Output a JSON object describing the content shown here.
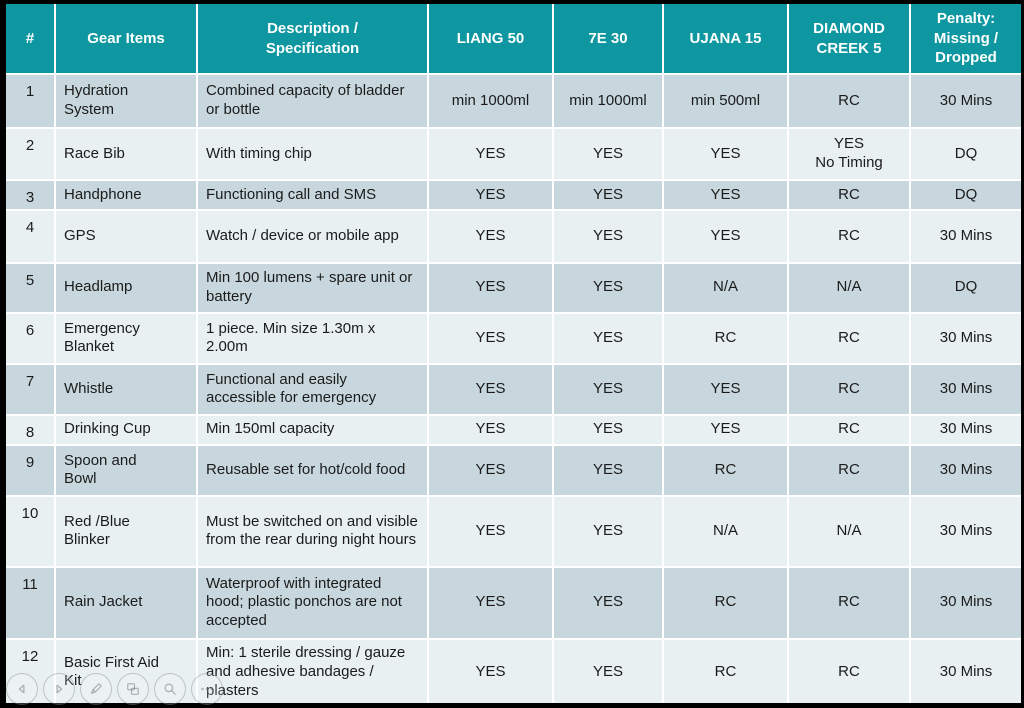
{
  "table": {
    "headers": [
      {
        "key": "num",
        "label": "#"
      },
      {
        "key": "gear_items",
        "label": "Gear Items"
      },
      {
        "key": "description",
        "label": "Description /\nSpecification"
      },
      {
        "key": "liang_50",
        "label": "LIANG 50"
      },
      {
        "key": "7e_30",
        "label": "7E 30"
      },
      {
        "key": "ujana_15",
        "label": "UJANA 15"
      },
      {
        "key": "diamond_creek_5",
        "label": "DIAMOND\nCREEK 5"
      },
      {
        "key": "penalty",
        "label": "Penalty:\nMissing /\nDropped"
      }
    ],
    "rows": [
      {
        "num": "1",
        "item": "Hydration\nSystem",
        "desc": "Combined capacity of bladder or bottle",
        "values": [
          "min 1000ml",
          "min 1000ml",
          "min 500ml",
          "RC",
          "30 Mins"
        ]
      },
      {
        "num": "2",
        "item": "Race Bib",
        "desc": "With timing chip",
        "values": [
          "YES",
          "YES",
          "YES",
          "YES\nNo Timing",
          "DQ"
        ]
      },
      {
        "num": "3",
        "item": "Handphone",
        "desc": "Functioning call and SMS",
        "values": [
          "YES",
          "YES",
          "YES",
          "RC",
          "DQ"
        ]
      },
      {
        "num": "4",
        "item": "GPS",
        "desc": "Watch / device or mobile app",
        "values": [
          "YES",
          "YES",
          "YES",
          "RC",
          "30 Mins"
        ]
      },
      {
        "num": "5",
        "item": "Headlamp",
        "desc": "Min 100 lumens + spare unit or battery",
        "values": [
          "YES",
          "YES",
          "N/A",
          "N/A",
          "DQ"
        ]
      },
      {
        "num": "6",
        "item": "Emergency\nBlanket",
        "desc": "1 piece. Min size 1.30m x 2.00m",
        "values": [
          "YES",
          "YES",
          "RC",
          "RC",
          "30 Mins"
        ]
      },
      {
        "num": "7",
        "item": "Whistle",
        "desc": "Functional and easily accessible for emergency",
        "values": [
          "YES",
          "YES",
          "YES",
          "RC",
          "30 Mins"
        ]
      },
      {
        "num": "8",
        "item": "Drinking Cup",
        "desc": "Min 150ml capacity",
        "values": [
          "YES",
          "YES",
          "YES",
          "RC",
          "30 Mins"
        ]
      },
      {
        "num": "9",
        "item": "Spoon and\nBowl",
        "desc": "Reusable set for hot/cold food",
        "values": [
          "YES",
          "YES",
          "RC",
          "RC",
          "30 Mins"
        ]
      },
      {
        "num": "10",
        "item": "Red /Blue\nBlinker",
        "desc": "Must be switched on and visible from the rear during night hours",
        "values": [
          "YES",
          "YES",
          "N/A",
          "N/A",
          "30 Mins"
        ]
      },
      {
        "num": "11",
        "item": "Rain Jacket",
        "desc": "Waterproof with integrated hood; plastic ponchos are not accepted",
        "values": [
          "YES",
          "YES",
          "RC",
          "RC",
          "30 Mins"
        ]
      },
      {
        "num": "12",
        "item": "Basic First Aid\nKit",
        "desc": "Min: 1 sterile dressing / gauze and adhesive bandages / plasters",
        "values": [
          "YES",
          "YES",
          "RC",
          "RC",
          "30 Mins"
        ]
      }
    ]
  },
  "colors": {
    "header_bg": "#0E97A0",
    "header_text": "#FFFFFF",
    "row_dark": "#C8D7DD",
    "row_light": "#E8F0F2",
    "body_text": "#1B1B1B",
    "grid": "#FFFFFF",
    "frame": "#000000"
  },
  "toolbar": {
    "buttons": [
      {
        "icon": "previous-arrow-icon",
        "name": "previous-slide-button"
      },
      {
        "icon": "next-arrow-icon",
        "name": "next-slide-button"
      },
      {
        "icon": "pen-icon",
        "name": "annotate-button"
      },
      {
        "icon": "all-slides-icon",
        "name": "see-all-slides-button"
      },
      {
        "icon": "magnifier-icon",
        "name": "zoom-slide-button"
      },
      {
        "icon": "ellipsis-icon",
        "name": "more-options-button"
      }
    ]
  }
}
